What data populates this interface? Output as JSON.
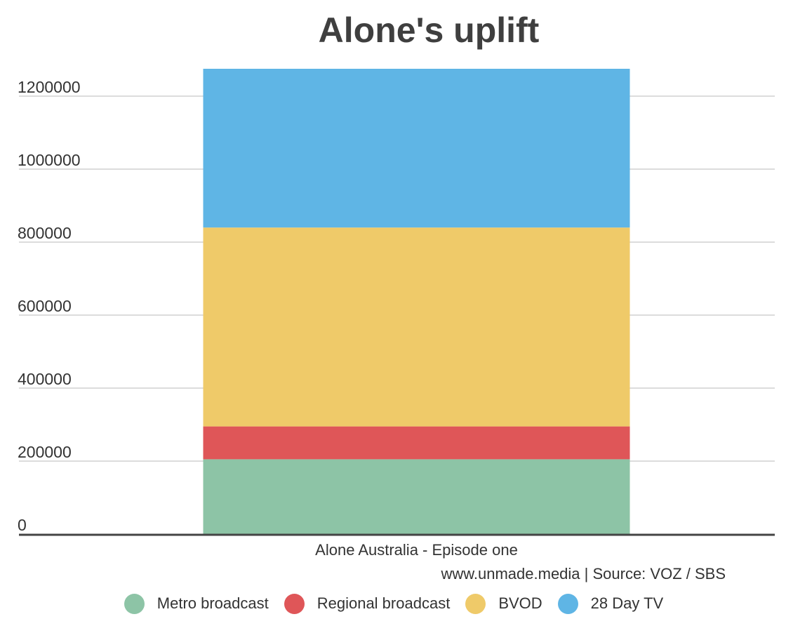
{
  "chart_data": {
    "type": "bar",
    "stacked": true,
    "title": "Alone's uplift",
    "categories": [
      "Alone Australia - Episode one"
    ],
    "series": [
      {
        "name": "Metro broadcast",
        "values": [
          205000
        ],
        "color": "#8dc4a6"
      },
      {
        "name": "Regional broadcast",
        "values": [
          90000
        ],
        "color": "#df5658"
      },
      {
        "name": "BVOD",
        "values": [
          545000
        ],
        "color": "#efca69"
      },
      {
        "name": "28 Day TV",
        "values": [
          435000
        ],
        "color": "#5fb5e5"
      }
    ],
    "yticks": [
      0,
      200000,
      400000,
      600000,
      800000,
      1000000,
      1200000
    ],
    "ylim": [
      0,
      1275000
    ],
    "grid": true,
    "legend_position": "bottom",
    "source": "www.unmade.media | Source: VOZ / SBS"
  }
}
